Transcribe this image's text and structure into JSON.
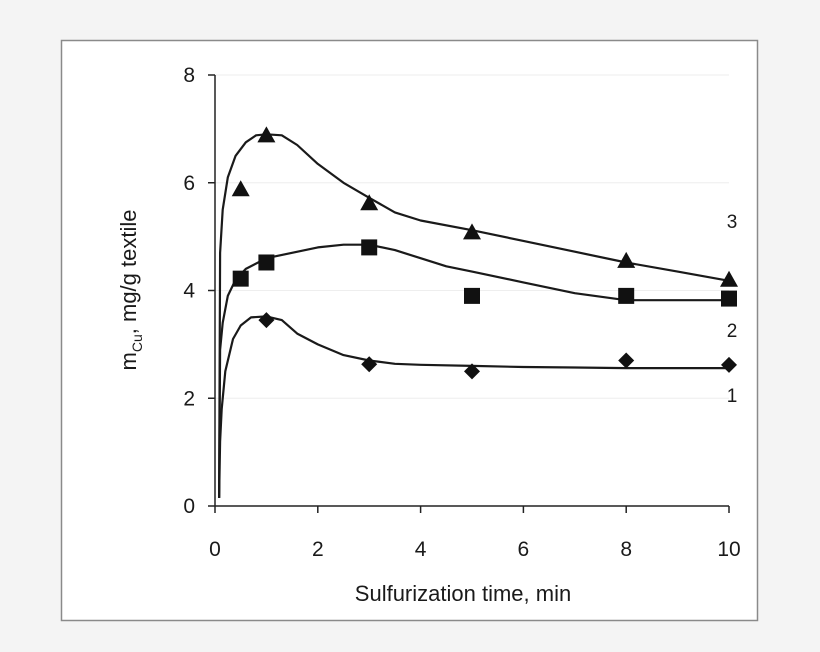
{
  "chart_data": {
    "type": "scatter",
    "title": "",
    "xlabel": "Sulfurization time, min",
    "ylabel": {
      "main": "m",
      "sub": "Cu",
      "rest": ", mg/g textile"
    },
    "xlim": [
      0,
      10
    ],
    "ylim": [
      0,
      8
    ],
    "xticks": [
      "0",
      "2",
      "4",
      "6",
      "8",
      "10"
    ],
    "yticks": [
      "0",
      "2",
      "4",
      "6",
      "8"
    ],
    "grid": "horizontal",
    "legend": "none",
    "series": [
      {
        "label": "1",
        "marker": "diamond",
        "points": [
          {
            "x": 1,
            "y": 3.45
          },
          {
            "x": 3,
            "y": 2.63
          },
          {
            "x": 5,
            "y": 2.5
          },
          {
            "x": 8,
            "y": 2.7
          },
          {
            "x": 10,
            "y": 2.62
          }
        ],
        "fit": [
          [
            0.08,
            0.15
          ],
          [
            0.1,
            1.2
          ],
          [
            0.13,
            1.8
          ],
          [
            0.2,
            2.5
          ],
          [
            0.35,
            3.1
          ],
          [
            0.5,
            3.35
          ],
          [
            0.7,
            3.5
          ],
          [
            1,
            3.52
          ],
          [
            1.3,
            3.45
          ],
          [
            1.6,
            3.2
          ],
          [
            2,
            3.0
          ],
          [
            2.5,
            2.8
          ],
          [
            3,
            2.7
          ],
          [
            3.5,
            2.64
          ],
          [
            4,
            2.62
          ],
          [
            5,
            2.6
          ],
          [
            6,
            2.58
          ],
          [
            7,
            2.57
          ],
          [
            8,
            2.56
          ],
          [
            9,
            2.56
          ],
          [
            10,
            2.56
          ]
        ]
      },
      {
        "label": "2",
        "marker": "square",
        "points": [
          {
            "x": 0.5,
            "y": 4.22
          },
          {
            "x": 1,
            "y": 4.52
          },
          {
            "x": 3,
            "y": 4.8
          },
          {
            "x": 5,
            "y": 3.9
          },
          {
            "x": 8,
            "y": 3.9
          },
          {
            "x": 10,
            "y": 3.85
          }
        ],
        "fit": [
          [
            0.08,
            0.15
          ],
          [
            0.1,
            2.9
          ],
          [
            0.15,
            3.4
          ],
          [
            0.25,
            3.9
          ],
          [
            0.4,
            4.2
          ],
          [
            0.6,
            4.4
          ],
          [
            1,
            4.6
          ],
          [
            1.5,
            4.7
          ],
          [
            2,
            4.8
          ],
          [
            2.5,
            4.85
          ],
          [
            3,
            4.85
          ],
          [
            3.5,
            4.75
          ],
          [
            4,
            4.6
          ],
          [
            4.5,
            4.45
          ],
          [
            5,
            4.35
          ],
          [
            6,
            4.15
          ],
          [
            7,
            3.95
          ],
          [
            8,
            3.82
          ],
          [
            9,
            3.82
          ],
          [
            10,
            3.82
          ]
        ]
      },
      {
        "label": "3",
        "marker": "triangle",
        "points": [
          {
            "x": 0.5,
            "y": 5.88
          },
          {
            "x": 1,
            "y": 6.88
          },
          {
            "x": 3,
            "y": 5.62
          },
          {
            "x": 5,
            "y": 5.08
          },
          {
            "x": 8,
            "y": 4.55
          },
          {
            "x": 10,
            "y": 4.2
          }
        ],
        "fit": [
          [
            0.08,
            0.15
          ],
          [
            0.1,
            4.7
          ],
          [
            0.15,
            5.5
          ],
          [
            0.25,
            6.1
          ],
          [
            0.4,
            6.5
          ],
          [
            0.6,
            6.75
          ],
          [
            0.8,
            6.88
          ],
          [
            1,
            6.9
          ],
          [
            1.3,
            6.88
          ],
          [
            1.6,
            6.7
          ],
          [
            2,
            6.35
          ],
          [
            2.5,
            6.0
          ],
          [
            3,
            5.72
          ],
          [
            3.5,
            5.45
          ],
          [
            4,
            5.3
          ],
          [
            5,
            5.12
          ],
          [
            6,
            4.92
          ],
          [
            7,
            4.72
          ],
          [
            8,
            4.52
          ],
          [
            9,
            4.35
          ],
          [
            10,
            4.18
          ]
        ]
      }
    ]
  }
}
